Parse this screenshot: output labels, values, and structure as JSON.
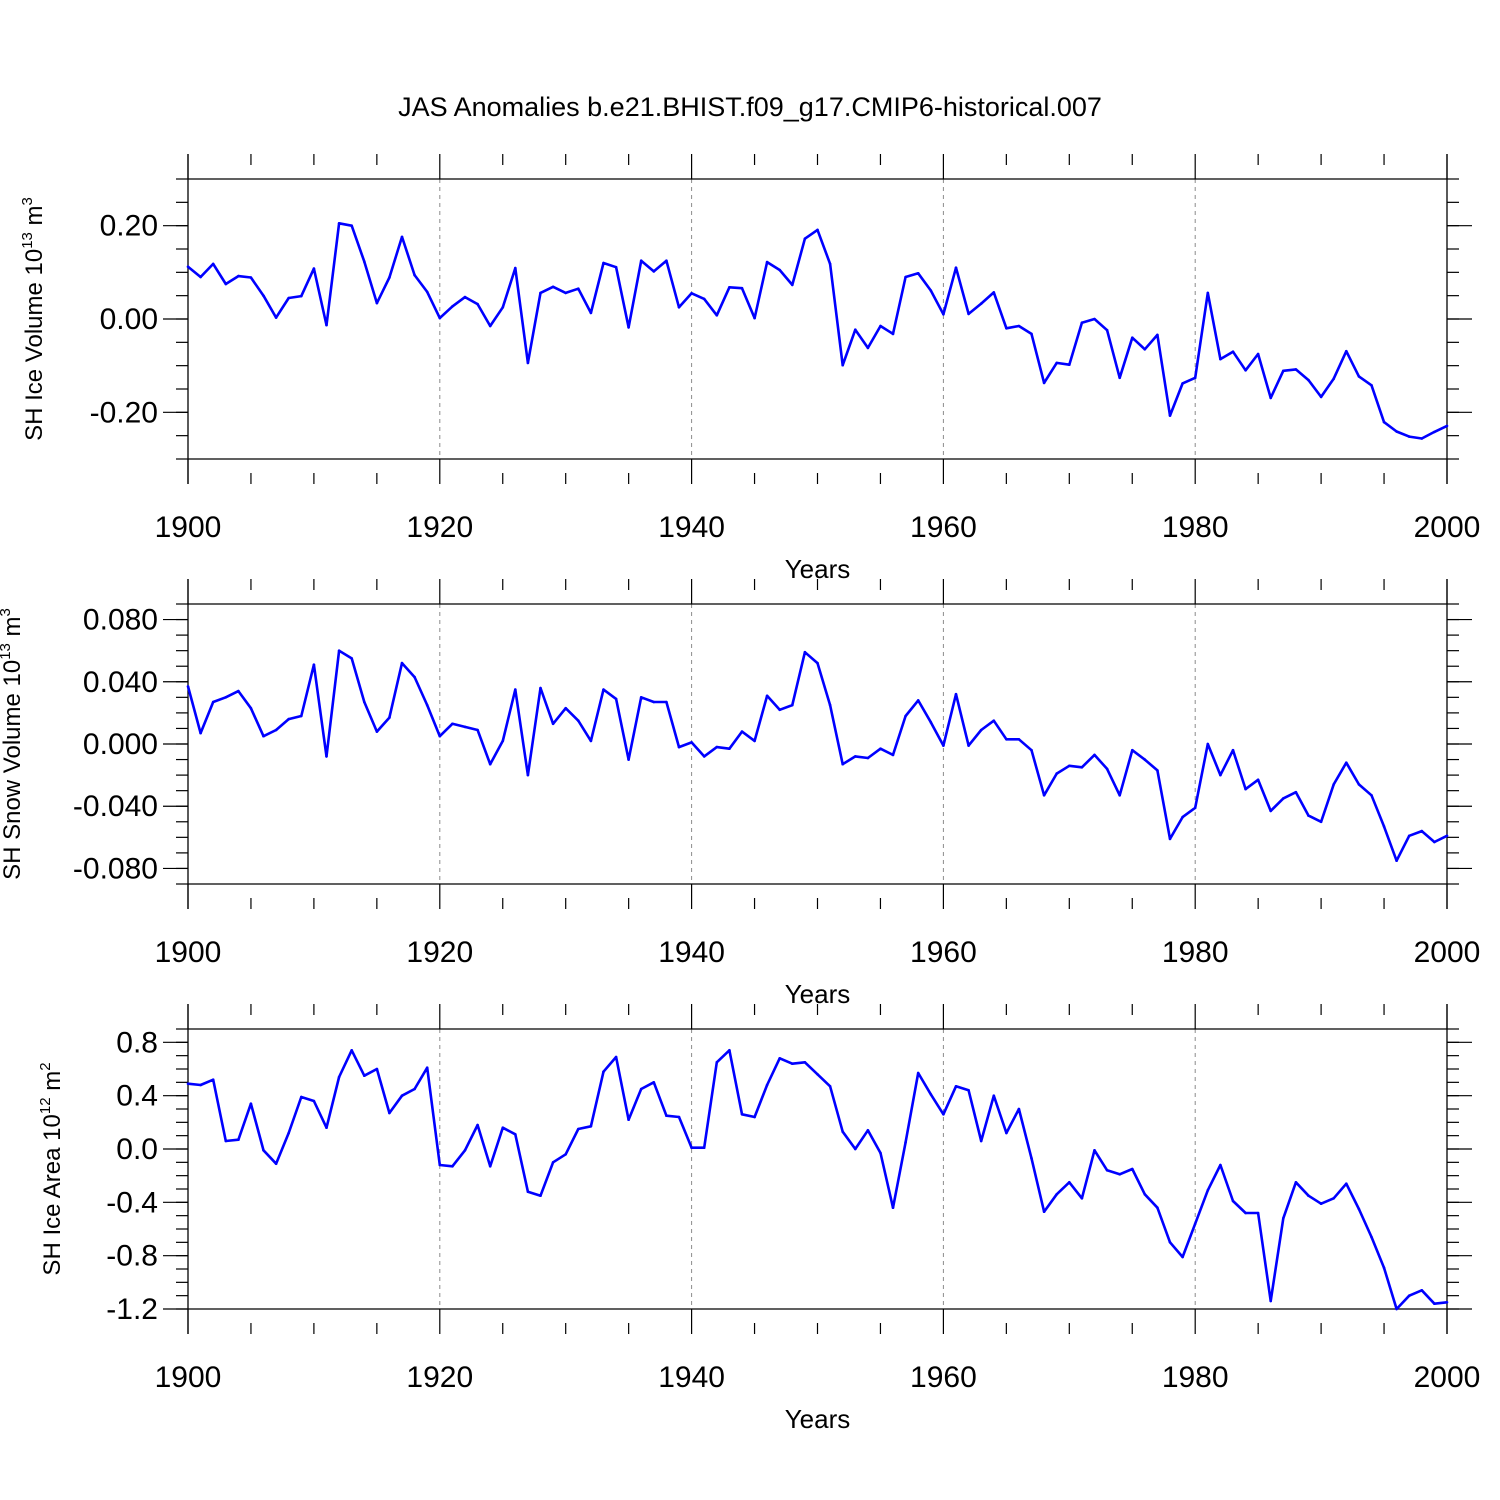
{
  "colors": {
    "line": "#0000ff",
    "axis": "#000000",
    "grid": "#8c8c8c"
  },
  "chart_data": {
    "title": "JAS Anomalies b.e21.BHIST.f09_g17.CMIP6-historical.007",
    "panels": [
      {
        "type": "line",
        "ylabel_main": "SH Ice Volume 10",
        "ylabel_exp": "13",
        "ylabel_unit": " m",
        "ylabel_unit_exp": "3",
        "xlabel": "Years",
        "xlim": [
          1900,
          2000
        ],
        "ylim": [
          -0.3,
          0.3
        ],
        "x_ticks": [
          1900,
          1920,
          1940,
          1960,
          1980,
          2000
        ],
        "x_tick_labels": [
          "1900",
          "1920",
          "1940",
          "1960",
          "1980",
          "2000"
        ],
        "y_ticks": [
          0.2,
          0.0,
          -0.2
        ],
        "y_tick_labels": [
          "0.20",
          "0.00",
          "-0.20"
        ],
        "y_minor_step": 0.05,
        "grid_x": [
          1920,
          1940,
          1960,
          1980
        ],
        "x_start": 1900,
        "values": [
          0.112,
          0.09,
          0.118,
          0.075,
          0.092,
          0.089,
          0.05,
          0.003,
          0.045,
          0.049,
          0.108,
          -0.013,
          0.205,
          0.2,
          0.123,
          0.034,
          0.089,
          0.176,
          0.094,
          0.058,
          0.002,
          0.027,
          0.047,
          0.032,
          -0.015,
          0.025,
          0.109,
          -0.094,
          0.056,
          0.069,
          0.056,
          0.065,
          0.013,
          0.12,
          0.111,
          -0.018,
          0.125,
          0.102,
          0.125,
          0.025,
          0.055,
          0.043,
          0.008,
          0.068,
          0.066,
          0.002,
          0.122,
          0.105,
          0.073,
          0.172,
          0.191,
          0.118,
          -0.099,
          -0.023,
          -0.062,
          -0.015,
          -0.032,
          0.09,
          0.098,
          0.061,
          0.01,
          0.11,
          0.011,
          0.033,
          0.057,
          -0.02,
          -0.015,
          -0.032,
          -0.137,
          -0.094,
          -0.098,
          -0.008,
          0.0,
          -0.024,
          -0.126,
          -0.04,
          -0.065,
          -0.034,
          -0.207,
          -0.138,
          -0.126,
          0.056,
          -0.086,
          -0.07,
          -0.11,
          -0.075,
          -0.169,
          -0.111,
          -0.108,
          -0.131,
          -0.167,
          -0.128,
          -0.069,
          -0.123,
          -0.142,
          -0.221,
          -0.241,
          -0.252,
          -0.256,
          -0.242,
          -0.229
        ]
      },
      {
        "type": "line",
        "ylabel_main": "SH Snow Volume 10",
        "ylabel_exp": "13",
        "ylabel_unit": " m",
        "ylabel_unit_exp": "3",
        "xlabel": "Years",
        "xlim": [
          1900,
          2000
        ],
        "ylim": [
          -0.09,
          0.09
        ],
        "x_ticks": [
          1900,
          1920,
          1940,
          1960,
          1980,
          2000
        ],
        "x_tick_labels": [
          "1900",
          "1920",
          "1940",
          "1960",
          "1980",
          "2000"
        ],
        "y_ticks": [
          0.08,
          0.04,
          0.0,
          -0.04,
          -0.08
        ],
        "y_tick_labels": [
          "0.080",
          "0.040",
          "0.000",
          "-0.040",
          "-0.080"
        ],
        "y_minor_step": 0.01,
        "grid_x": [
          1920,
          1940,
          1960,
          1980
        ],
        "x_start": 1900,
        "values": [
          0.037,
          0.007,
          0.027,
          0.03,
          0.034,
          0.023,
          0.005,
          0.009,
          0.016,
          0.018,
          0.051,
          -0.008,
          0.06,
          0.055,
          0.027,
          0.008,
          0.017,
          0.052,
          0.043,
          0.025,
          0.005,
          0.013,
          0.011,
          0.009,
          -0.013,
          0.002,
          0.035,
          -0.02,
          0.036,
          0.013,
          0.023,
          0.015,
          0.002,
          0.035,
          0.029,
          -0.01,
          0.03,
          0.027,
          0.027,
          -0.002,
          0.001,
          -0.008,
          -0.002,
          -0.003,
          0.008,
          0.002,
          0.031,
          0.022,
          0.025,
          0.059,
          0.052,
          0.025,
          -0.013,
          -0.008,
          -0.009,
          -0.003,
          -0.007,
          0.018,
          0.028,
          0.014,
          -0.001,
          0.032,
          -0.001,
          0.009,
          0.015,
          0.003,
          0.003,
          -0.004,
          -0.033,
          -0.019,
          -0.014,
          -0.015,
          -0.007,
          -0.016,
          -0.033,
          -0.004,
          -0.01,
          -0.017,
          -0.061,
          -0.047,
          -0.041,
          0.0,
          -0.02,
          -0.004,
          -0.029,
          -0.023,
          -0.043,
          -0.035,
          -0.031,
          -0.046,
          -0.05,
          -0.026,
          -0.012,
          -0.026,
          -0.033,
          -0.053,
          -0.075,
          -0.059,
          -0.056,
          -0.063,
          -0.059
        ]
      },
      {
        "type": "line",
        "ylabel_main": "SH Ice Area 10",
        "ylabel_exp": "12",
        "ylabel_unit": " m",
        "ylabel_unit_exp": "2",
        "xlabel": "Years",
        "xlim": [
          1900,
          2000
        ],
        "ylim": [
          -1.2,
          0.9
        ],
        "x_ticks": [
          1900,
          1920,
          1940,
          1960,
          1980,
          2000
        ],
        "x_tick_labels": [
          "1900",
          "1920",
          "1940",
          "1960",
          "1980",
          "2000"
        ],
        "y_ticks": [
          0.8,
          0.4,
          0.0,
          -0.4,
          -0.8,
          -1.2
        ],
        "y_tick_labels": [
          "0.8",
          "0.4",
          "0.0",
          "-0.4",
          "-0.8",
          "-1.2"
        ],
        "y_minor_step": 0.1,
        "grid_x": [
          1920,
          1940,
          1960,
          1980
        ],
        "x_start": 1900,
        "values": [
          0.49,
          0.48,
          0.52,
          0.06,
          0.07,
          0.34,
          -0.01,
          -0.11,
          0.12,
          0.39,
          0.36,
          0.16,
          0.54,
          0.74,
          0.55,
          0.6,
          0.27,
          0.4,
          0.45,
          0.61,
          -0.12,
          -0.13,
          -0.01,
          0.18,
          -0.13,
          0.16,
          0.11,
          -0.32,
          -0.35,
          -0.1,
          -0.04,
          0.15,
          0.17,
          0.58,
          0.69,
          0.22,
          0.45,
          0.5,
          0.25,
          0.24,
          0.01,
          0.01,
          0.65,
          0.74,
          0.26,
          0.24,
          0.48,
          0.68,
          0.64,
          0.65,
          0.56,
          0.47,
          0.13,
          0.0,
          0.14,
          -0.03,
          -0.44,
          0.05,
          0.57,
          0.41,
          0.26,
          0.47,
          0.44,
          0.06,
          0.4,
          0.12,
          0.3,
          -0.07,
          -0.47,
          -0.34,
          -0.25,
          -0.37,
          -0.01,
          -0.16,
          -0.19,
          -0.15,
          -0.34,
          -0.44,
          -0.7,
          -0.81,
          -0.56,
          -0.31,
          -0.12,
          -0.39,
          -0.48,
          -0.48,
          -1.14,
          -0.52,
          -0.25,
          -0.35,
          -0.41,
          -0.37,
          -0.26,
          -0.45,
          -0.66,
          -0.89,
          -1.2,
          -1.1,
          -1.06,
          -1.16,
          -1.15
        ]
      }
    ]
  }
}
